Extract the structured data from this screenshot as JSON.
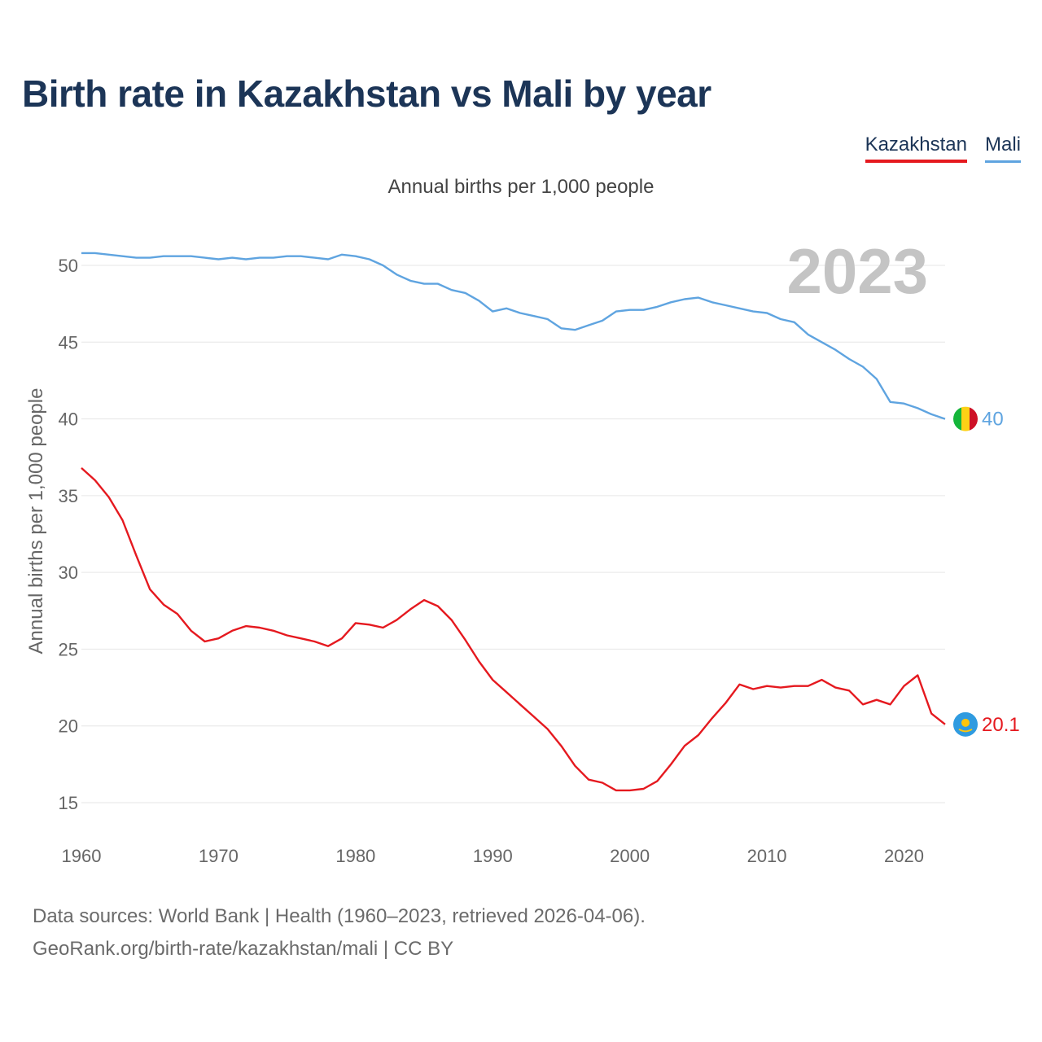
{
  "title": "Birth rate in Kazakhstan vs Mali by year",
  "legend": [
    {
      "name": "Kazakhstan",
      "color": "#e5191f"
    },
    {
      "name": "Mali",
      "color": "#5fa4e0"
    }
  ],
  "subtitle": "Annual births per 1,000 people",
  "year_label": "2023",
  "source_line1": "Data sources: World Bank | Health (1960–2023, retrieved 2026-04-06).",
  "source_line2": "GeoRank.org/birth-rate/kazakhstan/mali | CC BY",
  "chart_data": {
    "type": "line",
    "title": "Birth rate in Kazakhstan vs Mali by year",
    "xlabel": "",
    "ylabel": "Annual births per 1,000 people",
    "xlim": [
      1960,
      2023
    ],
    "ylim": [
      13,
      52
    ],
    "yticks": [
      15,
      20,
      25,
      30,
      35,
      40,
      45,
      50
    ],
    "xticks": [
      1960,
      1970,
      1980,
      1990,
      2000,
      2010,
      2020
    ],
    "grid": true,
    "legend_position": "top-right",
    "x": [
      1960,
      1961,
      1962,
      1963,
      1964,
      1965,
      1966,
      1967,
      1968,
      1969,
      1970,
      1971,
      1972,
      1973,
      1974,
      1975,
      1976,
      1977,
      1978,
      1979,
      1980,
      1981,
      1982,
      1983,
      1984,
      1985,
      1986,
      1987,
      1988,
      1989,
      1990,
      1991,
      1992,
      1993,
      1994,
      1995,
      1996,
      1997,
      1998,
      1999,
      2000,
      2001,
      2002,
      2003,
      2004,
      2005,
      2006,
      2007,
      2008,
      2009,
      2010,
      2011,
      2012,
      2013,
      2014,
      2015,
      2016,
      2017,
      2018,
      2019,
      2020,
      2021,
      2022,
      2023
    ],
    "series": [
      {
        "name": "Kazakhstan",
        "color": "#e5191f",
        "end_label": "20.1",
        "flag": "kazakhstan-flag",
        "values": [
          36.8,
          36.0,
          34.9,
          33.4,
          31.1,
          28.9,
          27.9,
          27.3,
          26.2,
          25.5,
          25.7,
          26.2,
          26.5,
          26.4,
          26.2,
          25.9,
          25.7,
          25.5,
          25.2,
          25.7,
          26.7,
          26.6,
          26.4,
          26.9,
          27.6,
          28.2,
          27.8,
          26.9,
          25.6,
          24.2,
          23.0,
          22.2,
          21.4,
          20.6,
          19.8,
          18.7,
          17.4,
          16.5,
          16.3,
          15.8,
          15.8,
          15.9,
          16.4,
          17.5,
          18.7,
          19.4,
          20.5,
          21.5,
          22.7,
          22.4,
          22.6,
          22.5,
          22.6,
          22.6,
          23.0,
          22.5,
          22.3,
          21.4,
          21.7,
          21.4,
          22.6,
          23.3,
          20.8,
          20.1
        ]
      },
      {
        "name": "Mali",
        "color": "#5fa4e0",
        "end_label": "40",
        "flag": "mali-flag",
        "values": [
          50.8,
          50.8,
          50.7,
          50.6,
          50.5,
          50.5,
          50.6,
          50.6,
          50.6,
          50.5,
          50.4,
          50.5,
          50.4,
          50.5,
          50.5,
          50.6,
          50.6,
          50.5,
          50.4,
          50.7,
          50.6,
          50.4,
          50.0,
          49.4,
          49.0,
          48.8,
          48.8,
          48.4,
          48.2,
          47.7,
          47.0,
          47.2,
          46.9,
          46.7,
          46.5,
          45.9,
          45.8,
          46.1,
          46.4,
          47.0,
          47.1,
          47.1,
          47.3,
          47.6,
          47.8,
          47.9,
          47.6,
          47.4,
          47.2,
          47.0,
          46.9,
          46.5,
          46.3,
          45.5,
          45.0,
          44.5,
          43.9,
          43.4,
          42.6,
          41.1,
          41.0,
          40.7,
          40.3,
          40.0
        ]
      }
    ]
  }
}
